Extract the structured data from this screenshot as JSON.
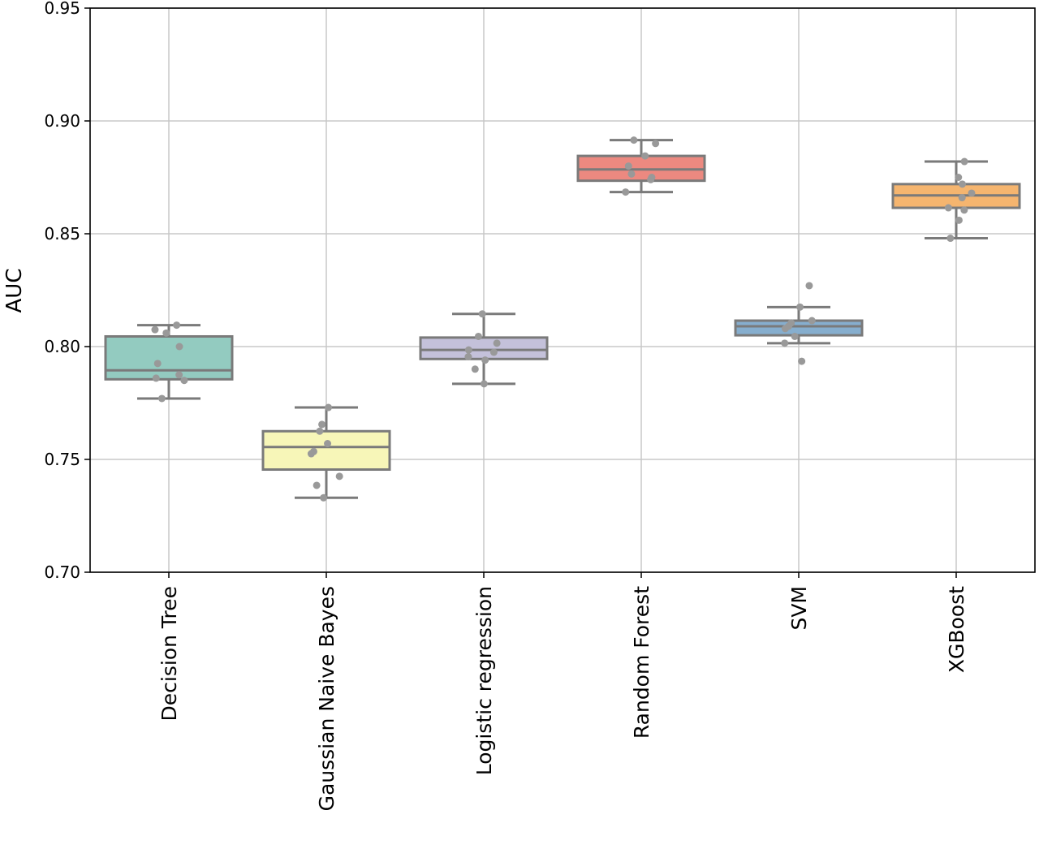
{
  "chart_data": {
    "type": "box",
    "ylabel": "AUC",
    "xlabel": "",
    "ylim": [
      0.7,
      0.95
    ],
    "yticks": [
      "0.70",
      "0.75",
      "0.80",
      "0.85",
      "0.90",
      "0.95"
    ],
    "grid": true,
    "categories": [
      "Decision Tree",
      "Gaussian Naive Bayes",
      "Logistic regression",
      "Random Forest",
      "SVM",
      "XGBoost"
    ],
    "colors": {
      "Decision Tree": "#93CBC0",
      "Gaussian Naive Bayes": "#F7F6B8",
      "Logistic regression": "#C4C1DA",
      "Random Forest": "#EC8980",
      "SVM": "#86AECE",
      "XGBoost": "#F5B56F",
      "box_edge": "#7A7A7A",
      "points": "#999999",
      "grid": "#C8C8C8"
    },
    "boxes": [
      {
        "name": "Decision Tree",
        "whisker_low": 0.777,
        "q1": 0.7855,
        "median": 0.7895,
        "q3": 0.8045,
        "whisker_high": 0.8095,
        "points": [
          0.8095,
          0.8075,
          0.806,
          0.8,
          0.7925,
          0.7875,
          0.786,
          0.785,
          0.777
        ]
      },
      {
        "name": "Gaussian Naive Bayes",
        "whisker_low": 0.733,
        "q1": 0.7455,
        "median": 0.7555,
        "q3": 0.7625,
        "whisker_high": 0.773,
        "points": [
          0.773,
          0.7655,
          0.7625,
          0.757,
          0.7535,
          0.7525,
          0.7425,
          0.7385,
          0.733
        ]
      },
      {
        "name": "Logistic regression",
        "whisker_low": 0.7835,
        "q1": 0.7945,
        "median": 0.7985,
        "q3": 0.804,
        "whisker_high": 0.8145,
        "points": [
          0.8145,
          0.8045,
          0.8015,
          0.7985,
          0.7975,
          0.7955,
          0.794,
          0.79,
          0.7835
        ]
      },
      {
        "name": "Random Forest",
        "whisker_low": 0.8685,
        "q1": 0.8735,
        "median": 0.8785,
        "q3": 0.8845,
        "whisker_high": 0.8915,
        "points": [
          0.8915,
          0.89,
          0.8845,
          0.88,
          0.8765,
          0.875,
          0.874,
          0.8685
        ]
      },
      {
        "name": "SVM",
        "whisker_low": 0.8015,
        "q1": 0.805,
        "median": 0.809,
        "q3": 0.8115,
        "whisker_high": 0.8175,
        "points": [
          0.827,
          0.8175,
          0.8115,
          0.8105,
          0.809,
          0.808,
          0.8045,
          0.8015,
          0.7935
        ]
      },
      {
        "name": "XGBoost",
        "whisker_low": 0.848,
        "q1": 0.8615,
        "median": 0.867,
        "q3": 0.872,
        "whisker_high": 0.882,
        "points": [
          0.882,
          0.875,
          0.872,
          0.868,
          0.866,
          0.8615,
          0.8605,
          0.856,
          0.848
        ]
      }
    ]
  }
}
